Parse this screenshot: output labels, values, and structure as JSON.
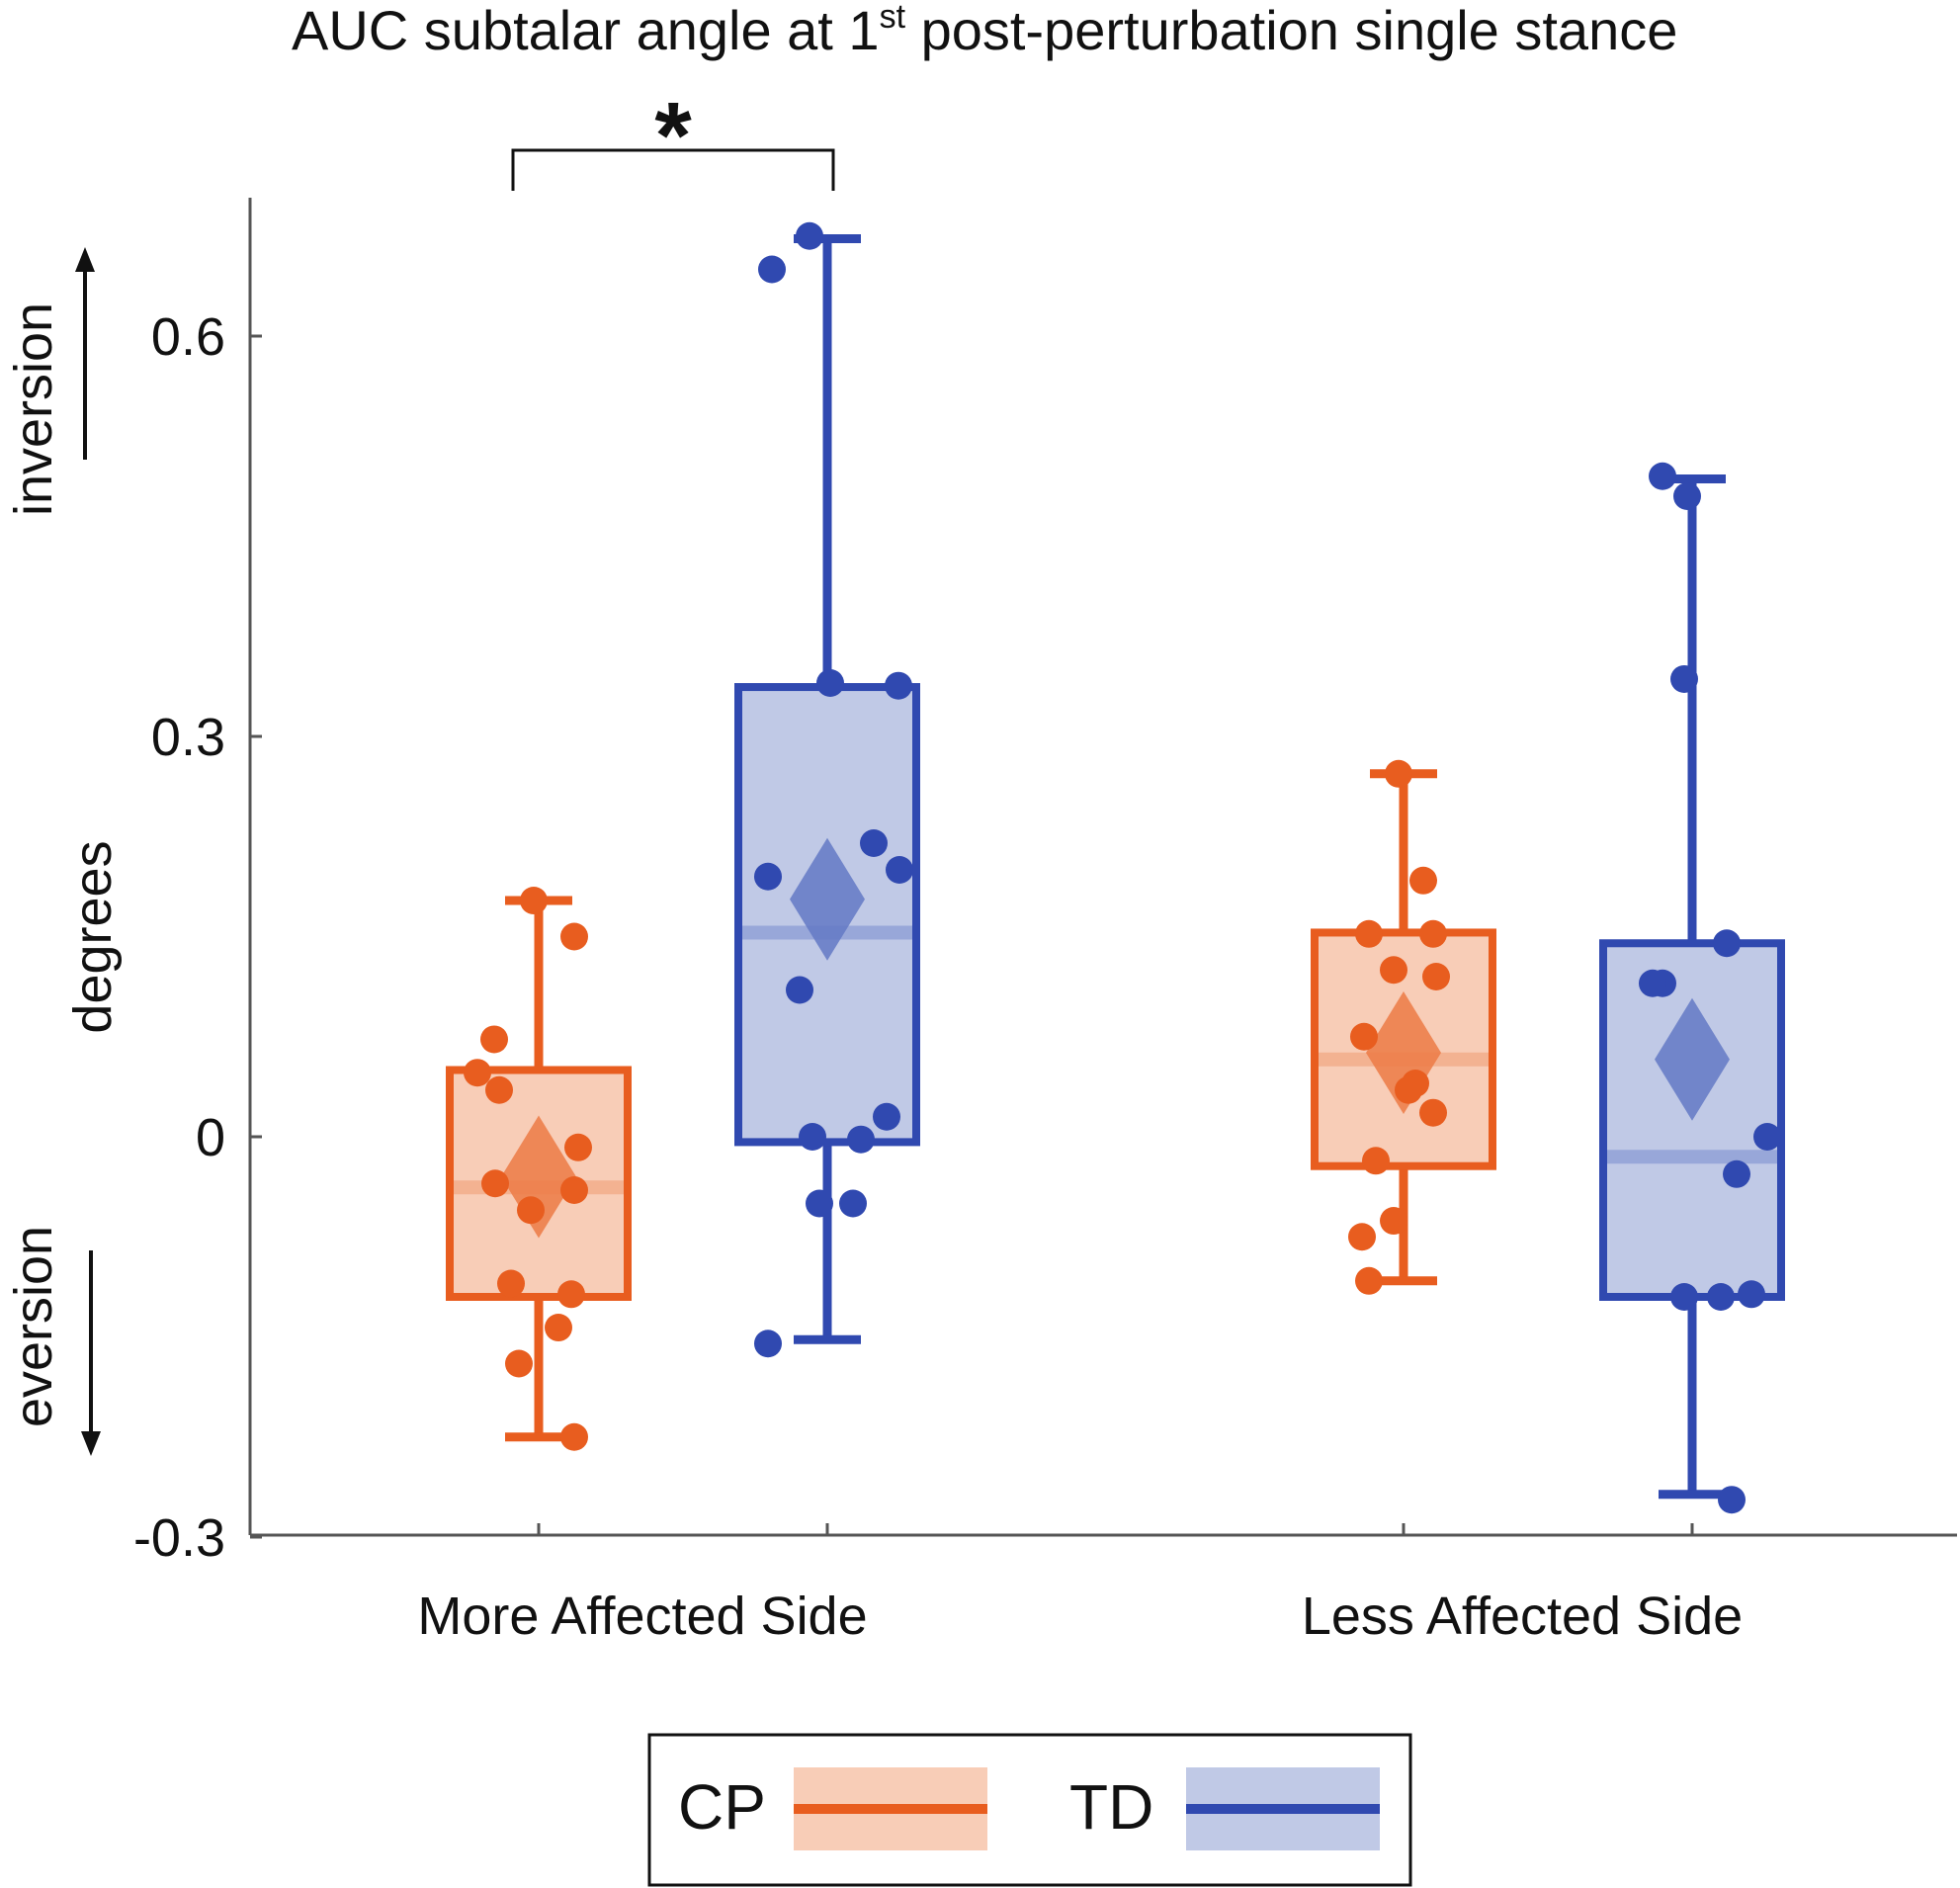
{
  "chart_data": {
    "type": "box",
    "title": {
      "prefix": "AUC subtalar angle at 1",
      "superscript": "st",
      "suffix": " post-perturbation single stance"
    },
    "ylabel": "degrees",
    "direction_labels": {
      "up": "inversion",
      "down": "eversion"
    },
    "ylim": [
      -0.3,
      0.7
    ],
    "yticks": [
      -0.3,
      0,
      0.3,
      0.6
    ],
    "ytick_labels": [
      "-0.3",
      "0",
      "0.3",
      "0.6"
    ],
    "categories": [
      "More Affected Side",
      "Less Affected Side"
    ],
    "significance": {
      "category": "More Affected Side",
      "label": "*"
    },
    "colors": {
      "CP": {
        "line": "#e85d1f",
        "fill": "#f8cdb7",
        "diamond": "#ec7a45",
        "median": "#f3b291"
      },
      "TD": {
        "line": "#3049b0",
        "fill": "#c0c9e6",
        "diamond": "#6379c4",
        "median": "#98a7d9"
      }
    },
    "legend": [
      {
        "group": "CP",
        "label": "CP"
      },
      {
        "group": "TD",
        "label": "TD"
      }
    ],
    "series": [
      {
        "name": "CP",
        "boxes": [
          {
            "category": "More Affected Side",
            "whisker_low": -0.225,
            "q1": -0.12,
            "median": -0.038,
            "q3": 0.05,
            "whisker_high": 0.177,
            "mean": -0.03,
            "points": [
              0.177,
              0.15,
              0.073,
              0.048,
              0.035,
              -0.008,
              -0.035,
              -0.04,
              -0.055,
              -0.11,
              -0.118,
              -0.143,
              -0.17,
              -0.225
            ]
          },
          {
            "category": "Less Affected Side",
            "whisker_low": -0.108,
            "q1": -0.022,
            "median": 0.058,
            "q3": 0.153,
            "whisker_high": 0.272,
            "mean": 0.063,
            "points": [
              0.272,
              0.192,
              0.152,
              0.152,
              0.12,
              0.125,
              0.075,
              0.04,
              0.035,
              0.018,
              -0.018,
              -0.063,
              -0.075,
              -0.108
            ]
          }
        ]
      },
      {
        "name": "TD",
        "boxes": [
          {
            "category": "More Affected Side",
            "whisker_low": -0.152,
            "q1": -0.004,
            "median": 0.153,
            "q3": 0.337,
            "whisker_high": 0.673,
            "mean": 0.178,
            "points": [
              0.675,
              0.65,
              0.338,
              0.34,
              0.22,
              0.195,
              0.2,
              0.11,
              0.015,
              0.0,
              -0.002,
              -0.05,
              -0.05,
              -0.155
            ]
          },
          {
            "category": "Less Affected Side",
            "whisker_low": -0.268,
            "q1": -0.12,
            "median": -0.015,
            "q3": 0.145,
            "whisker_high": 0.493,
            "mean": 0.058,
            "points": [
              0.495,
              0.48,
              0.343,
              0.145,
              0.115,
              0.115,
              0.0,
              -0.028,
              -0.118,
              -0.12,
              -0.12,
              -0.272
            ]
          }
        ]
      }
    ]
  }
}
